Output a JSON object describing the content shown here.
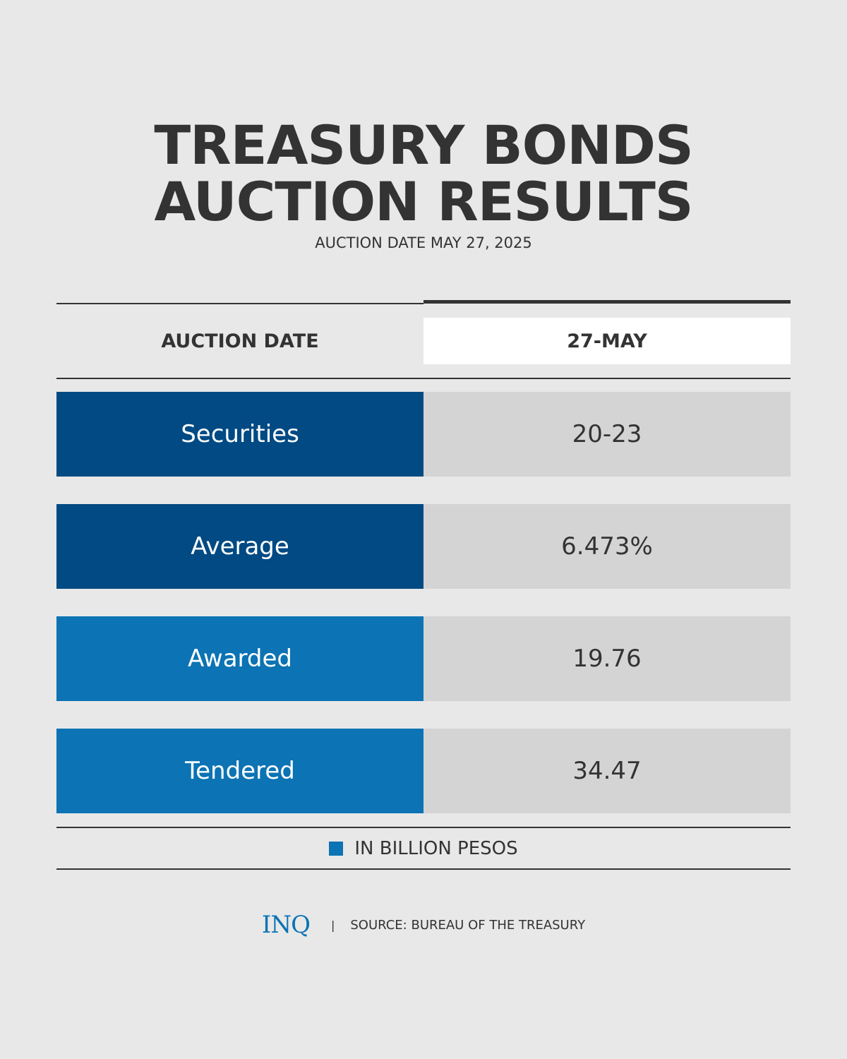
{
  "title": {
    "line1": "TREASURY BONDS",
    "line2": "AUCTION RESULTS"
  },
  "subtitle": "AUCTION DATE MAY 27, 2025",
  "colors": {
    "background": "#e8e8e8",
    "dark_blue": "#014a83",
    "light_blue": "#0c73b4",
    "value_bg": "#d4d4d4"
  },
  "chart_data": {
    "type": "table",
    "title": "TREASURY BONDS AUCTION RESULTS",
    "columns": [
      "AUCTION DATE",
      "27-MAY"
    ],
    "rows": [
      {
        "label": "Securities",
        "value": "20-23"
      },
      {
        "label": "Average",
        "value": "6.473%"
      },
      {
        "label": "Awarded",
        "value": "19.76"
      },
      {
        "label": "Tendered",
        "value": "34.47"
      }
    ],
    "legend": "IN BILLION PESOS"
  },
  "footer": {
    "logo": "INQ",
    "separator": "|",
    "source": "SOURCE: BUREAU OF THE TREASURY"
  }
}
